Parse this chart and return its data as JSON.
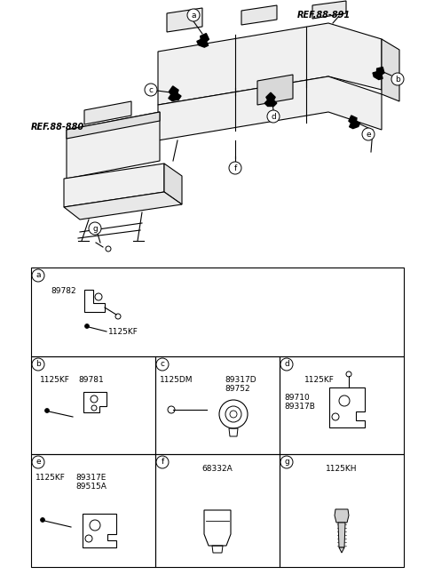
{
  "bg_color": "#ffffff",
  "parts": {
    "a": [
      "89782",
      "1125KF"
    ],
    "b": [
      "1125KF",
      "89781"
    ],
    "c": [
      "1125DM",
      "89317D",
      "89752"
    ],
    "d": [
      "1125KF",
      "89710",
      "89317B"
    ],
    "e": [
      "1125KF",
      "89317E",
      "89515A"
    ],
    "f": [
      "68332A"
    ],
    "g": [
      "1125KH"
    ]
  },
  "ref_891": "REF.88-891",
  "ref_880": "REF.88-880",
  "labels": [
    "a",
    "b",
    "c",
    "d",
    "e",
    "f",
    "g"
  ]
}
